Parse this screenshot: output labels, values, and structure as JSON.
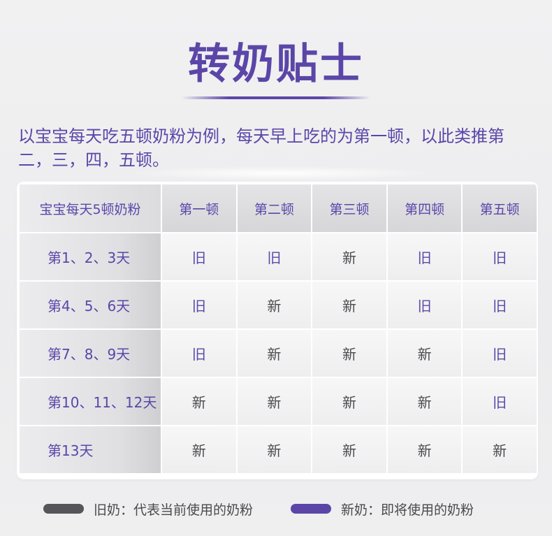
{
  "title": "转奶贴士",
  "intro": "以宝宝每天吃五顿奶粉为例，每天早上吃的为第一顿，以此类推第二，三，四，五顿。",
  "table": {
    "header": [
      "宝宝每天5顿奶粉",
      "第一顿",
      "第二顿",
      "第三顿",
      "第四顿",
      "第五顿"
    ],
    "rows": [
      {
        "label": "第1、2、3天",
        "cells": [
          "旧",
          "旧",
          "新",
          "旧",
          "旧"
        ]
      },
      {
        "label": "第4、5、6天",
        "cells": [
          "旧",
          "新",
          "新",
          "旧",
          "旧"
        ]
      },
      {
        "label": "第7、8、9天",
        "cells": [
          "旧",
          "新",
          "新",
          "新",
          "旧"
        ]
      },
      {
        "label": "第10、11、12天",
        "cells": [
          "新",
          "新",
          "新",
          "新",
          "旧"
        ]
      },
      {
        "label": "第13天",
        "cells": [
          "新",
          "新",
          "新",
          "新",
          "新"
        ]
      }
    ]
  },
  "legend": {
    "old": {
      "text": "旧奶：代表当前使用的奶粉",
      "color": "#55555a"
    },
    "new": {
      "text": "新奶：即将使用的奶粉",
      "color": "#5b46a8"
    }
  },
  "colors": {
    "accent": "#5b46a8",
    "text_dark": "#4a4a4e"
  }
}
